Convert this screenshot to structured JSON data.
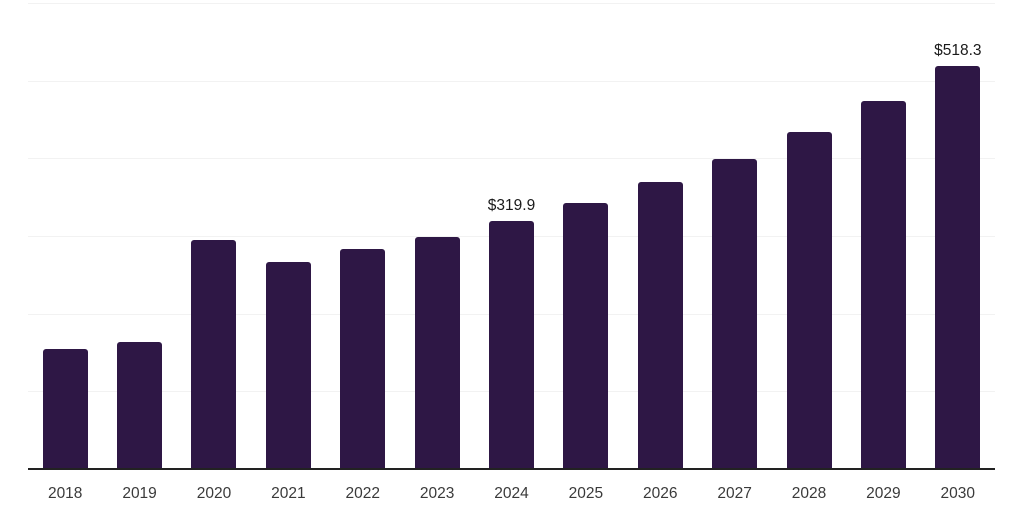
{
  "chart_data": {
    "type": "bar",
    "categories": [
      "2018",
      "2019",
      "2020",
      "2021",
      "2022",
      "2023",
      "2024",
      "2025",
      "2026",
      "2027",
      "2028",
      "2029",
      "2030"
    ],
    "values": [
      155,
      164,
      295,
      266,
      283,
      299,
      319.9,
      343,
      369,
      399,
      434,
      474,
      518.3
    ],
    "point_labels": [
      null,
      null,
      null,
      null,
      null,
      null,
      "$319.9",
      null,
      null,
      null,
      null,
      null,
      "$518.3"
    ],
    "ylim": [
      0,
      600
    ],
    "gridline_values": [
      100,
      200,
      300,
      400,
      500,
      600
    ],
    "grid": "horizontal",
    "legend_position": "none",
    "bar_color": "#2e1745",
    "gridline_color": "#f2f2f2",
    "axis_line_color": "#222222",
    "tick_label_color": "#3a3a3a",
    "value_label_color": "#1a1a1a"
  }
}
